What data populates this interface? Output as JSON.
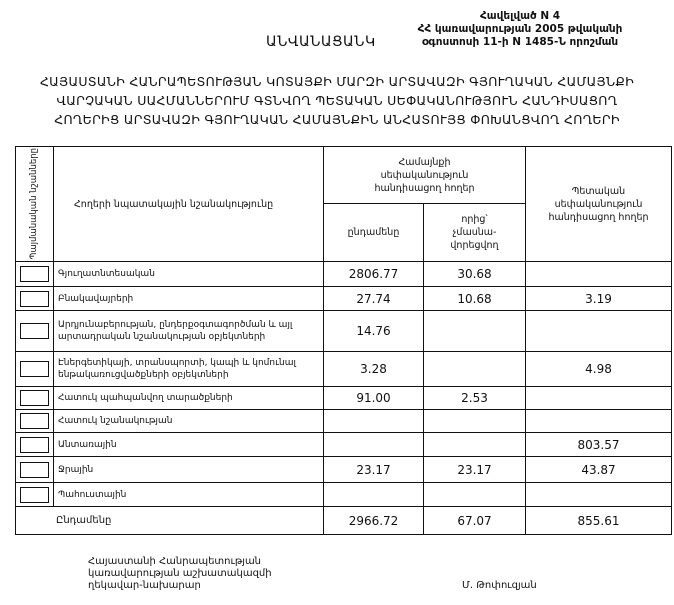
{
  "annex": {
    "line1": "Հավելված N 4",
    "line2": "ՀՀ կառավարության 2005 թվականի",
    "line3": "օգոստոսի 11-ի N 1485-Ն որոշման"
  },
  "doc_title": "ԱՆՎԱՆԱՑԱՆԿ",
  "heading": {
    "line1": "ՀԱՅԱՍՏԱՆԻ ՀԱՆՐԱՊԵՏՈՒԹՅԱՆ ԿՈՏԱՅՔԻ ՄԱՐԶԻ ԱՐՏԱՎԱԶԻ ԳՅՈՒՂԱԿԱՆ ՀԱՄԱՅՆՔԻ",
    "line2": "ՎԱՐՉԱԿԱՆ ՍԱՀՄԱՆՆԵՐՈՒՄ ԳՏՆՎՈՂ ՊԵՏԱԿԱՆ ՍԵՓԱԿԱՆՈՒԹՅՈՒՆ ՀԱՆԴԻՍԱՑՈՂ",
    "line3": "ՀՈՂԵՐԻՑ ԱՐՏԱՎԱԶԻ ԳՅՈՒՂԱԿԱՆ ՀԱՄԱՅՆՔԻՆ ԱՆՀԱՏՈՒՅՑ ՓՈԽԱՆՑՎՈՂ ՀՈՂԵՐԻ"
  },
  "table": {
    "headers": {
      "symbols": "Պայմանական նշանները",
      "purpose": "Հողերի նպատակային նշանակությունը",
      "community": "Համայնքի սեփականություն հանդիսացող հողեր",
      "total": "ընդամենը",
      "non_private": "որից՝ չմասնա-վորեցվող",
      "state": "Պետական սեփականություն հանդիսացող հողեր"
    },
    "rows": [
      {
        "label": "Գյուղատնտեսական",
        "total": "2806.77",
        "non_private": "30.68",
        "state": ""
      },
      {
        "label": "Բնակավայրերի",
        "total": "27.74",
        "non_private": "10.68",
        "state": "3.19"
      },
      {
        "label": "Արդյունաբերության, ընդերքօգտագործման և այլ արտադրական նշանակության օբյեկտների",
        "total": "14.76",
        "non_private": "",
        "state": ""
      },
      {
        "label": "Էներգետիկայի, տրանսպորտի, կապի և կոմունալ ենթակառուցվածքների օբյեկտների",
        "total": "3.28",
        "non_private": "",
        "state": "4.98"
      },
      {
        "label": "Հատուկ պահպանվող տարածքների",
        "total": "91.00",
        "non_private": "2.53",
        "state": ""
      },
      {
        "label": "Հատուկ նշանակության",
        "total": "",
        "non_private": "",
        "state": ""
      },
      {
        "label": "Անտառային",
        "total": "",
        "non_private": "",
        "state": "803.57"
      },
      {
        "label": "Ջրային",
        "total": "23.17",
        "non_private": "23.17",
        "state": "43.87"
      },
      {
        "label": "Պահուստային",
        "total": "",
        "non_private": "",
        "state": ""
      }
    ],
    "totals": {
      "label": "Ընդամենը",
      "total": "2966.72",
      "non_private": "67.07",
      "state": "855.61"
    }
  },
  "footer": {
    "position_line1": "Հայաստանի Հանրապետության",
    "position_line2": "կառավարության աշխատակազմի",
    "position_line3": "ղեկավար-նախարար",
    "signatory": "Մ. Թոփուզյան"
  }
}
